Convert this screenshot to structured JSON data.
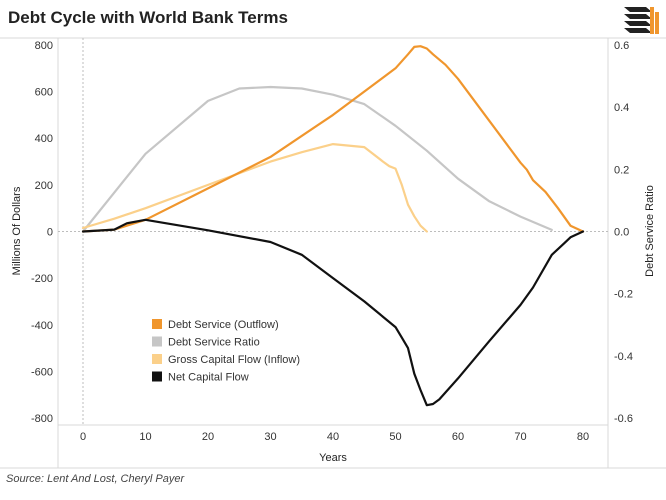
{
  "title": "Debt Cycle with World Bank Terms",
  "source": "Source: Lent And Lost, Cheryl Payer",
  "logo_icon": "bar-stack-logo-icon",
  "chart_data": {
    "type": "line",
    "xlabel": "Years",
    "ylabel_left": "Millions Of Dollars",
    "ylabel_right": "Debt Service Ratio",
    "xlim": [
      -4,
      84
    ],
    "ylim_left": [
      -830,
      830
    ],
    "ylim_right": [
      -0.6225,
      0.6225
    ],
    "x_ticks": [
      0,
      10,
      20,
      30,
      40,
      50,
      60,
      70,
      80
    ],
    "y_ticks_left": [
      800,
      600,
      400,
      200,
      0,
      -200,
      -400,
      -600,
      -800
    ],
    "y_ticks_left_labels": [
      "800",
      "600",
      "400",
      "200",
      "0",
      "-200",
      "-400",
      "-600",
      "-800"
    ],
    "y_ticks_right": [
      0.6,
      0.4,
      0.2,
      0.0,
      -0.2,
      -0.4,
      -0.6
    ],
    "y_ticks_right_labels": [
      "0.6",
      "0.4",
      "0.2",
      "0.0",
      "-0.2",
      "-0.4",
      "-0.6"
    ],
    "legend_position": "lower-left",
    "grid": false,
    "series": [
      {
        "name": "Debt Service (Outflow)",
        "axis": "left",
        "color": "#f0962d",
        "x": [
          0,
          5,
          10,
          20,
          30,
          40,
          50,
          52,
          53,
          54,
          55,
          56,
          58,
          60,
          65,
          70,
          71,
          72,
          74,
          76,
          78,
          80
        ],
        "y": [
          0,
          8,
          50,
          185,
          320,
          500,
          700,
          760,
          792,
          795,
          785,
          760,
          715,
          655,
          475,
          295,
          265,
          220,
          170,
          100,
          25,
          0
        ]
      },
      {
        "name": "Debt Service Ratio",
        "axis": "right",
        "color": "#c6c6c6",
        "x": [
          0,
          10,
          20,
          25,
          30,
          35,
          40,
          45,
          50,
          55,
          60,
          65,
          70,
          75
        ],
        "y": [
          0.0,
          0.25,
          0.42,
          0.46,
          0.465,
          0.46,
          0.44,
          0.41,
          0.34,
          0.26,
          0.17,
          0.097,
          0.048,
          0.005
        ]
      },
      {
        "name": "Gross Capital Flow (Inflow)",
        "axis": "left",
        "color": "#fbd08a",
        "x": [
          0,
          5,
          10,
          20,
          30,
          35,
          40,
          45,
          48,
          49,
          50,
          51,
          52,
          53,
          54,
          55
        ],
        "y": [
          15,
          55,
          100,
          200,
          300,
          340,
          375,
          362,
          300,
          280,
          270,
          200,
          115,
          65,
          25,
          0
        ]
      },
      {
        "name": "Net Capital Flow",
        "axis": "left",
        "color": "#111111",
        "x": [
          0,
          5,
          7,
          10,
          20,
          30,
          35,
          40,
          45,
          50,
          51,
          52,
          53,
          54,
          55,
          56,
          57,
          60,
          65,
          70,
          72,
          75,
          77,
          78,
          80
        ],
        "y": [
          0,
          8,
          35,
          50,
          5,
          -45,
          -100,
          -200,
          -300,
          -410,
          -455,
          -500,
          -610,
          -680,
          -745,
          -740,
          -720,
          -630,
          -470,
          -315,
          -240,
          -100,
          -50,
          -25,
          0
        ]
      }
    ]
  }
}
